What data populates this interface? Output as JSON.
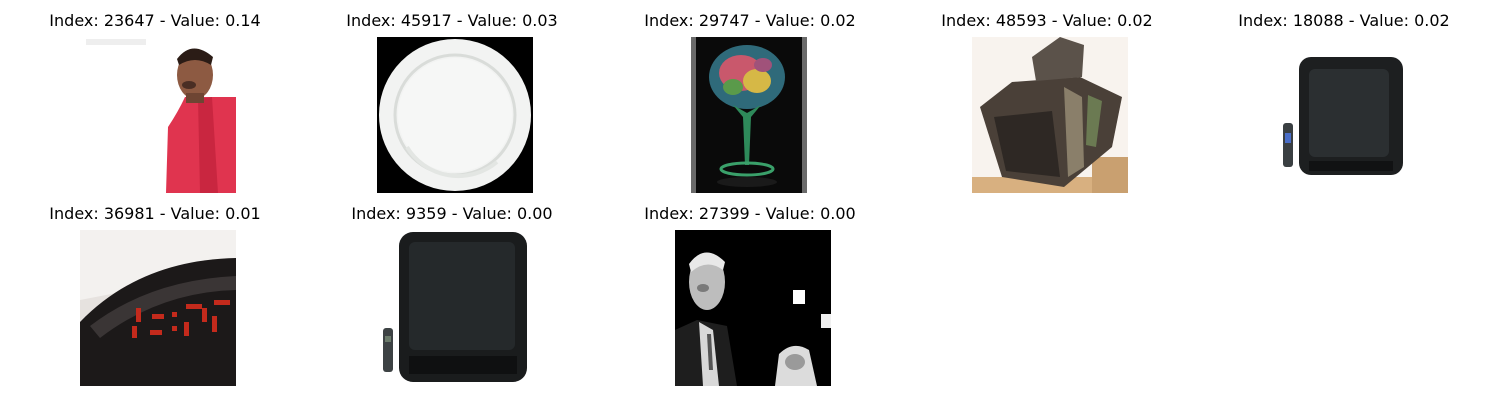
{
  "figure": {
    "panels": [
      {
        "index": "23647",
        "value": "0.14",
        "title": "Index: 23647 - Value: 0.14",
        "subject": "person in red shirt on white background"
      },
      {
        "index": "45917",
        "value": "0.03",
        "title": "Index: 45917 - Value: 0.03",
        "subject": "white plate on black background"
      },
      {
        "index": "29747",
        "value": "0.02",
        "title": "Index: 29747 - Value: 0.02",
        "subject": "decorated wine glass on black background"
      },
      {
        "index": "48593",
        "value": "0.02",
        "title": "Index: 48593 - Value: 0.02",
        "subject": "dark box-shaped object"
      },
      {
        "index": "18088",
        "value": "0.02",
        "title": "Index: 18088 - Value: 0.02",
        "subject": "black television with remote"
      },
      {
        "index": "36981",
        "value": "0.01",
        "title": "Index: 36981 - Value: 0.01",
        "subject": "digital alarm clock with red digits"
      },
      {
        "index": "9359",
        "value": "0.00",
        "title": "Index: 9359 - Value: 0.00",
        "subject": "black television with remote"
      },
      {
        "index": "27399",
        "value": "0.00",
        "title": "Index: 27399 - Value: 0.00",
        "subject": "black and white photo of man in suit"
      }
    ]
  },
  "colors": {
    "background": "#ffffff",
    "title_text": "#000000"
  }
}
